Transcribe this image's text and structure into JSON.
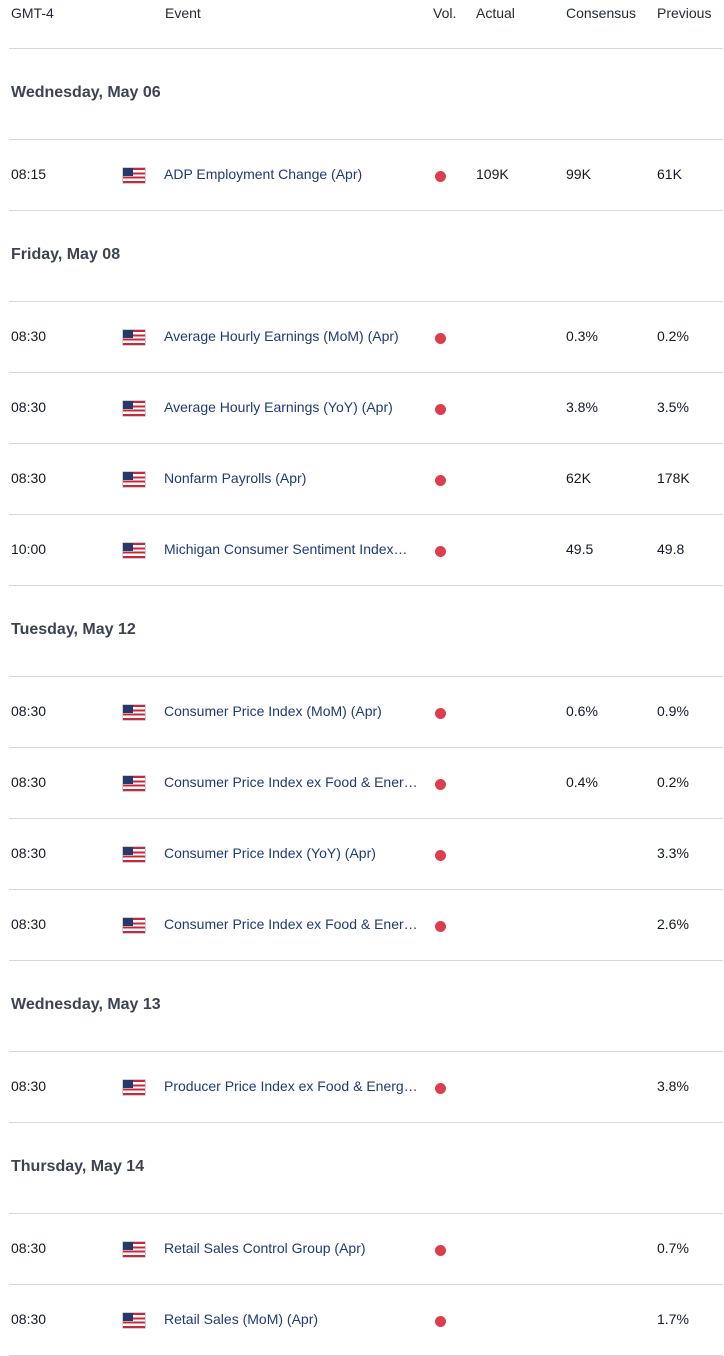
{
  "header": {
    "timezone": "GMT-4",
    "event": "Event",
    "vol": "Vol.",
    "actual": "Actual",
    "consensus": "Consensus",
    "previous": "Previous"
  },
  "colors": {
    "volatility_high": "#dc3f4c",
    "event_text": "#1f3a78",
    "divider": "#d6d6d6"
  },
  "days": [
    {
      "label": "Wednesday, May 06",
      "events": [
        {
          "time": "08:15",
          "flag": "us-flag-icon",
          "event": "ADP Employment Change (Apr)",
          "vol": "high",
          "actual": "109K",
          "consensus": "99K",
          "previous": "61K"
        }
      ]
    },
    {
      "label": "Friday, May 08",
      "events": [
        {
          "time": "08:30",
          "flag": "us-flag-icon",
          "event": "Average Hourly Earnings (MoM) (Apr)",
          "vol": "high",
          "actual": "",
          "consensus": "0.3%",
          "previous": "0.2%"
        },
        {
          "time": "08:30",
          "flag": "us-flag-icon",
          "event": "Average Hourly Earnings (YoY) (Apr)",
          "vol": "high",
          "actual": "",
          "consensus": "3.8%",
          "previous": "3.5%"
        },
        {
          "time": "08:30",
          "flag": "us-flag-icon",
          "event": "Nonfarm Payrolls (Apr)",
          "vol": "high",
          "actual": "",
          "consensus": "62K",
          "previous": "178K"
        },
        {
          "time": "10:00",
          "flag": "us-flag-icon",
          "event": "Michigan Consumer Sentiment Index…",
          "vol": "high",
          "actual": "",
          "consensus": "49.5",
          "previous": "49.8"
        }
      ]
    },
    {
      "label": "Tuesday, May 12",
      "events": [
        {
          "time": "08:30",
          "flag": "us-flag-icon",
          "event": "Consumer Price Index (MoM) (Apr)",
          "vol": "high",
          "actual": "",
          "consensus": "0.6%",
          "previous": "0.9%"
        },
        {
          "time": "08:30",
          "flag": "us-flag-icon",
          "event": "Consumer Price Index ex Food & Ener…",
          "vol": "high",
          "actual": "",
          "consensus": "0.4%",
          "previous": "0.2%"
        },
        {
          "time": "08:30",
          "flag": "us-flag-icon",
          "event": "Consumer Price Index (YoY) (Apr)",
          "vol": "high",
          "actual": "",
          "consensus": "",
          "previous": "3.3%"
        },
        {
          "time": "08:30",
          "flag": "us-flag-icon",
          "event": "Consumer Price Index ex Food & Ener…",
          "vol": "high",
          "actual": "",
          "consensus": "",
          "previous": "2.6%"
        }
      ]
    },
    {
      "label": "Wednesday, May 13",
      "events": [
        {
          "time": "08:30",
          "flag": "us-flag-icon",
          "event": "Producer Price Index ex Food & Energ…",
          "vol": "high",
          "actual": "",
          "consensus": "",
          "previous": "3.8%"
        }
      ]
    },
    {
      "label": "Thursday, May 14",
      "events": [
        {
          "time": "08:30",
          "flag": "us-flag-icon",
          "event": "Retail Sales Control Group (Apr)",
          "vol": "high",
          "actual": "",
          "consensus": "",
          "previous": "0.7%"
        },
        {
          "time": "08:30",
          "flag": "us-flag-icon",
          "event": "Retail Sales (MoM) (Apr)",
          "vol": "high",
          "actual": "",
          "consensus": "",
          "previous": "1.7%"
        }
      ]
    }
  ]
}
